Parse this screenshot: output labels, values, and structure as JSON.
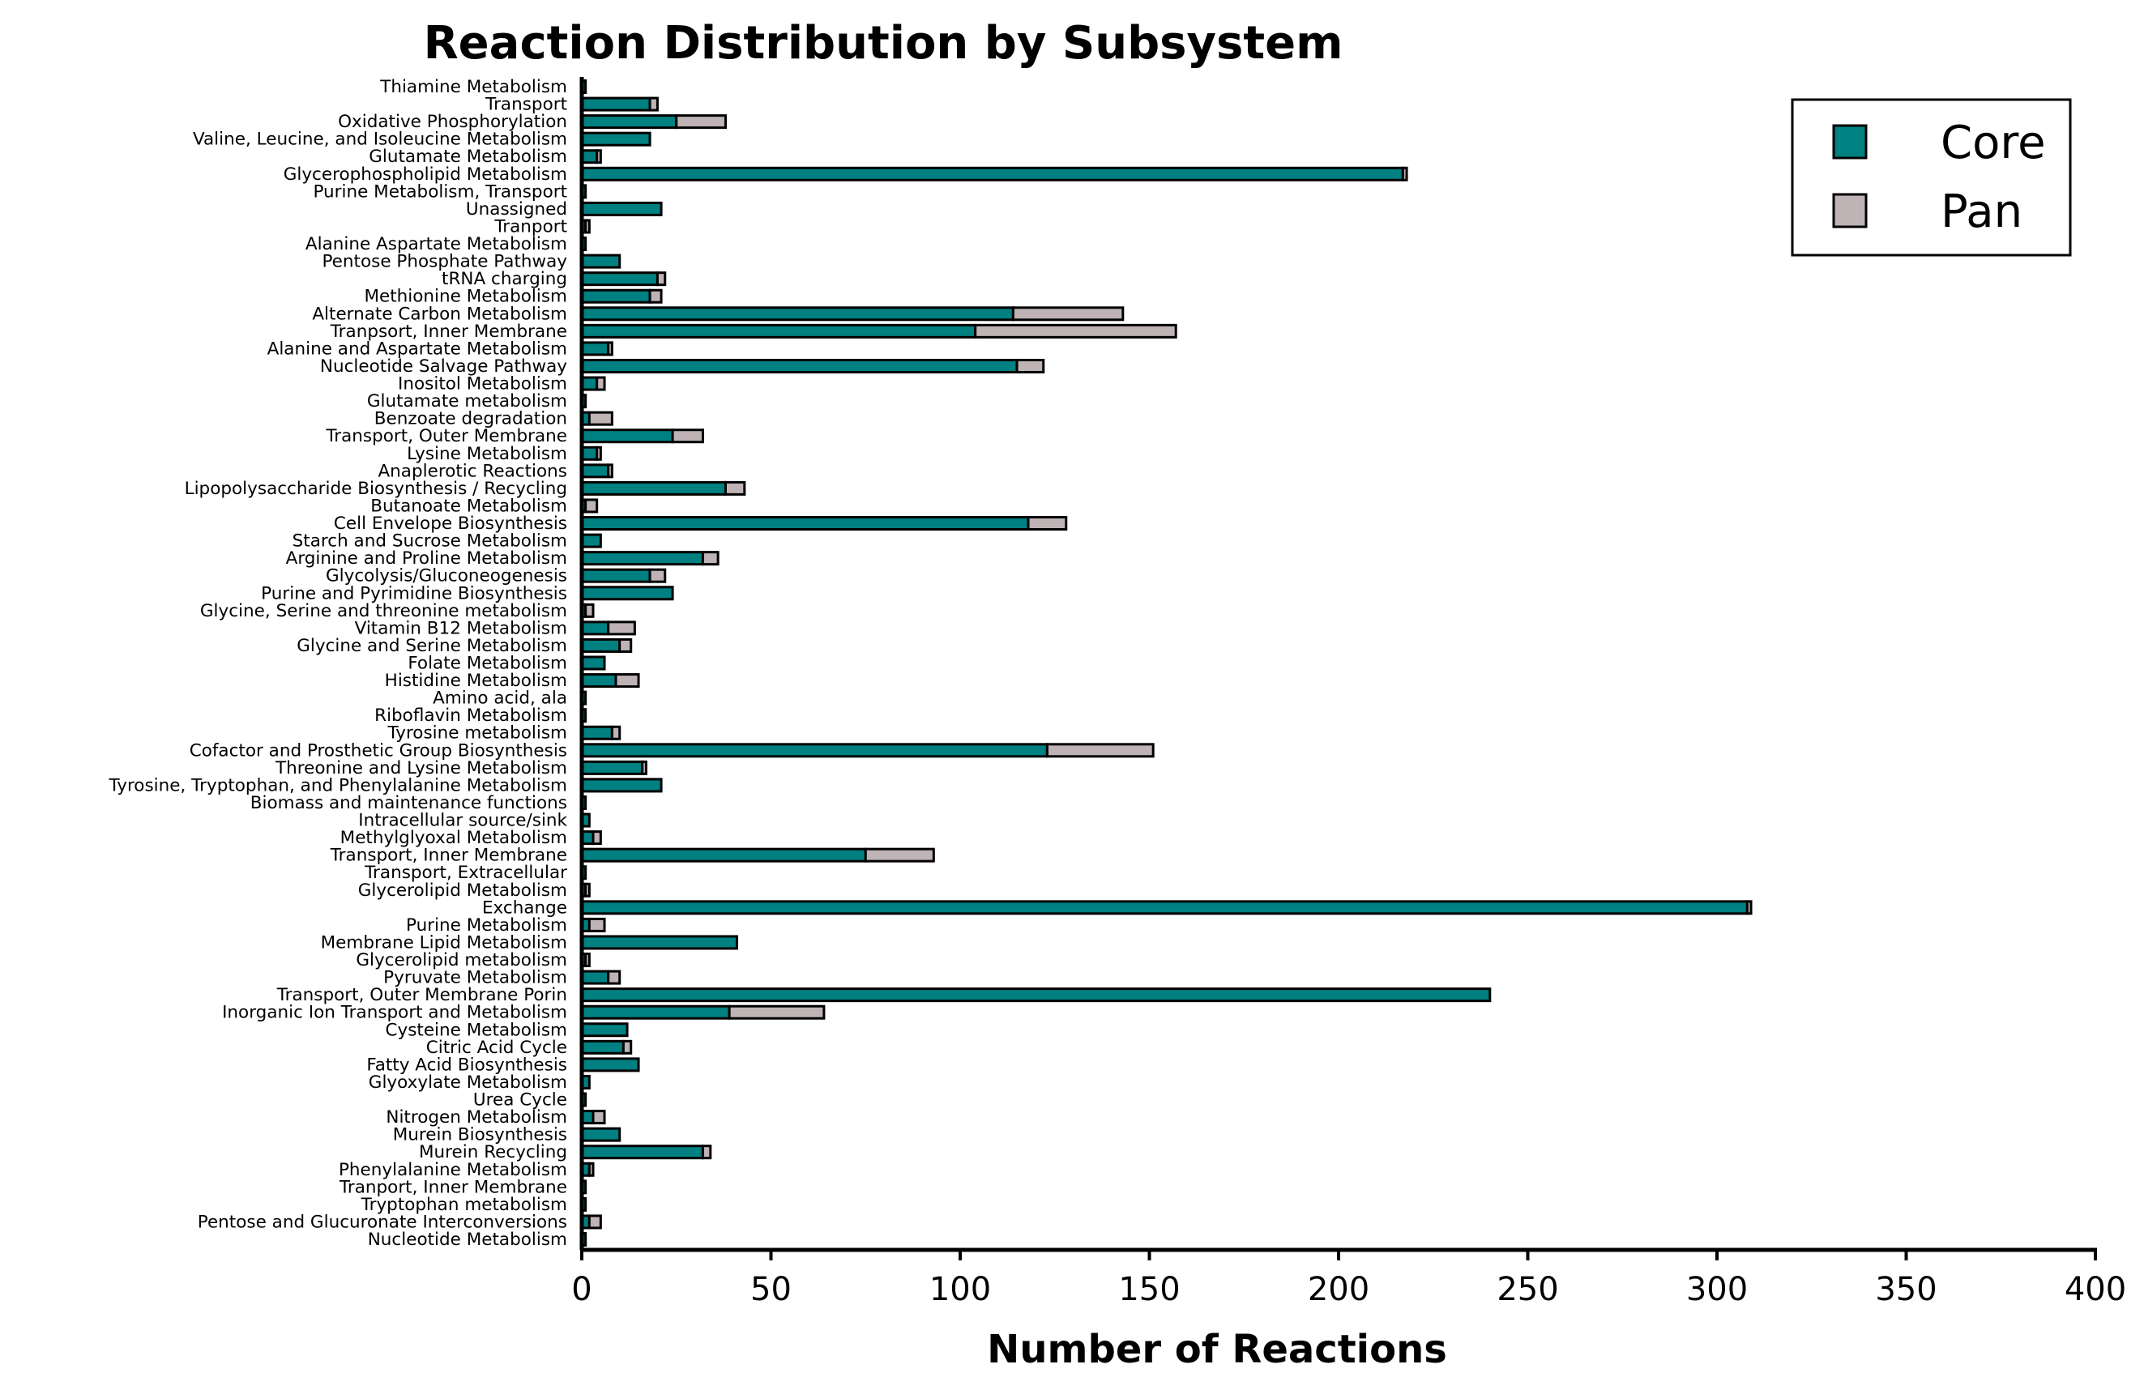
{
  "chart_data": {
    "type": "bar",
    "orientation": "horizontal",
    "stacked": true,
    "title": "Reaction Distribution by Subsystem",
    "xlabel": "Number of Reactions",
    "ylabel": "",
    "xlim": [
      0,
      400
    ],
    "xticks": [
      0,
      50,
      100,
      150,
      200,
      250,
      300,
      350,
      400
    ],
    "grid": false,
    "legend_position": "top-right",
    "categories": [
      "Thiamine Metabolism",
      "Transport",
      "Oxidative Phosphorylation",
      "Valine, Leucine, and Isoleucine Metabolism",
      "Glutamate Metabolism",
      "Glycerophospholipid Metabolism",
      "Purine Metabolism, Transport",
      "Unassigned",
      "Tranport",
      "Alanine Aspartate Metabolism",
      "Pentose Phosphate Pathway",
      "tRNA charging",
      "Methionine Metabolism",
      "Alternate Carbon Metabolism",
      "Tranpsort, Inner Membrane",
      "Alanine and Aspartate Metabolism",
      "Nucleotide Salvage Pathway",
      "Inositol Metabolism",
      "Glutamate metabolism",
      "Benzoate degradation",
      "Transport, Outer Membrane",
      "Lysine Metabolism",
      "Anaplerotic Reactions",
      "Lipopolysaccharide Biosynthesis / Recycling",
      "Butanoate Metabolism",
      "Cell Envelope Biosynthesis",
      "Starch and Sucrose Metabolism",
      "Arginine and Proline Metabolism",
      "Glycolysis/Gluconeogenesis",
      "Purine and Pyrimidine Biosynthesis",
      "Glycine, Serine and threonine metabolism",
      "Vitamin B12 Metabolism",
      "Glycine and Serine Metabolism",
      "Folate Metabolism",
      "Histidine Metabolism",
      "Amino acid, ala",
      "Riboflavin Metabolism",
      "Tyrosine metabolism",
      "Cofactor and Prosthetic Group Biosynthesis",
      "Threonine and Lysine Metabolism",
      "Tyrosine, Tryptophan, and Phenylalanine Metabolism",
      "Biomass and maintenance functions",
      "Intracellular source/sink",
      "Methylglyoxal Metabolism",
      "Transport, Inner Membrane",
      "Transport, Extracellular",
      "Glycerolipid Metabolism",
      "Exchange",
      "Purine Metabolism",
      "Membrane Lipid Metabolism",
      "Glycerolipid metabolism",
      "Pyruvate Metabolism",
      "Transport, Outer Membrane Porin",
      "Inorganic Ion Transport and Metabolism",
      "Cysteine Metabolism",
      "Citric Acid Cycle",
      "Fatty Acid  Biosynthesis",
      "Glyoxylate Metabolism",
      "Urea Cycle",
      "Nitrogen Metabolism",
      "Murein Biosynthesis",
      "Murein Recycling",
      "Phenylalanine Metabolism",
      "Tranport, Inner Membrane",
      "Tryptophan metabolism",
      "Pentose and Glucuronate Interconversions",
      "Nucleotide Metabolism"
    ],
    "series": [
      {
        "name": "Core",
        "color": "#008080",
        "values": [
          1,
          18,
          25,
          18,
          4,
          217,
          1,
          21,
          1,
          1,
          10,
          20,
          18,
          114,
          104,
          7,
          115,
          4,
          1,
          2,
          24,
          4,
          7,
          38,
          1,
          118,
          5,
          32,
          18,
          24,
          1,
          7,
          10,
          6,
          9,
          1,
          1,
          8,
          123,
          16,
          21,
          1,
          2,
          3,
          75,
          1,
          1,
          308,
          2,
          41,
          1,
          7,
          240,
          39,
          12,
          11,
          15,
          2,
          1,
          3,
          10,
          32,
          2,
          1,
          1,
          2,
          1
        ]
      },
      {
        "name": "Pan",
        "color": "#bfb3b6",
        "values": [
          0,
          2,
          13,
          0,
          1,
          1,
          0,
          0,
          1,
          0,
          0,
          2,
          3,
          29,
          53,
          1,
          7,
          2,
          0,
          6,
          8,
          1,
          1,
          5,
          3,
          10,
          0,
          4,
          4,
          0,
          2,
          7,
          3,
          0,
          6,
          0,
          0,
          2,
          28,
          1,
          0,
          0,
          0,
          2,
          18,
          0,
          1,
          1,
          4,
          0,
          1,
          3,
          0,
          25,
          0,
          2,
          0,
          0,
          0,
          3,
          0,
          2,
          1,
          0,
          0,
          3,
          0
        ]
      }
    ]
  }
}
